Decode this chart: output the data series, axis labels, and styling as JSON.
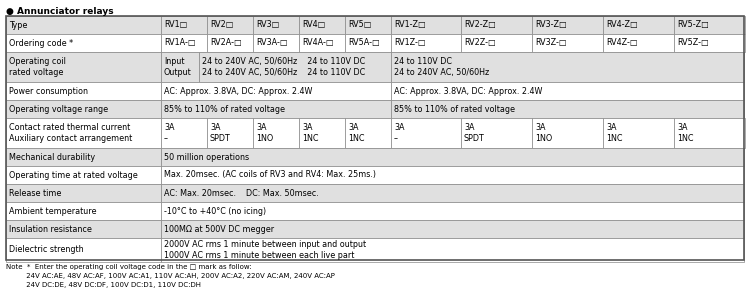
{
  "title": "● Annunciator relays",
  "note_lines": [
    "Note  *  Enter the operating coil voltage code in the □ mark as follow:",
    "         24V AC:AE, 48V AC:AF, 100V AC:A1, 110V AC:AH, 200V AC:A2, 220V AC:AM, 240V AC:AP",
    "         24V DC:DE, 48V DC:DF, 100V DC:D1, 110V DC:DH"
  ],
  "rows": [
    {
      "label": "Type",
      "cols": [
        "RV1□",
        "RV2□",
        "RV3□",
        "RV4□",
        "RV5□",
        "RV1-Z□",
        "RV2-Z□",
        "RV3-Z□",
        "RV4-Z□",
        "RV5-Z□"
      ],
      "bg": "#e0e0e0",
      "type": "individual"
    },
    {
      "label": "Ordering code *",
      "cols": [
        "RV1A-□",
        "RV2A-□",
        "RV3A-□",
        "RV4A-□",
        "RV5A-□",
        "RV1Z-□",
        "RV2Z-□",
        "RV3Z-□",
        "RV4Z-□",
        "RV5Z-□"
      ],
      "bg": "#ffffff",
      "type": "individual"
    },
    {
      "label": "Operating coil\nrated voltage",
      "sublabel": "Input\nOutput",
      "col1_text": "24 to 240V AC, 50/60Hz    24 to 110V DC\n24 to 240V AC, 50/60Hz    24 to 110V DC",
      "col2_text": "24 to 110V DC\n24 to 240V AC, 50/60Hz",
      "bg": "#e0e0e0",
      "type": "voltage"
    },
    {
      "label": "Power consumption",
      "col1_text": "AC: Approx. 3.8VA, DC: Approx. 2.4W",
      "col2_text": "AC: Approx. 3.8VA, DC: Approx. 2.4W",
      "bg": "#ffffff",
      "type": "half"
    },
    {
      "label": "Operating voltage range",
      "col1_text": "85% to 110% of rated voltage",
      "col2_text": "85% to 110% of rated voltage",
      "bg": "#e0e0e0",
      "type": "half"
    },
    {
      "label": "Contact rated thermal current\nAuxiliary contact arrangement",
      "cols": [
        "3A\n–",
        "3A\nSPDT",
        "3A\n1NO",
        "3A\n1NC",
        "3A\n1NC",
        "3A\n–",
        "3A\nSPDT",
        "3A\n1NO",
        "3A\n1NC",
        "3A\n1NC"
      ],
      "bg": "#ffffff",
      "type": "individual"
    },
    {
      "label": "Mechanical durability",
      "full_text": "50 million operations",
      "bg": "#e0e0e0",
      "type": "full"
    },
    {
      "label": "Operating time at rated voltage",
      "full_text": "Max. 20msec. (AC coils of RV3 and RV4: Max. 25ms.)",
      "bg": "#ffffff",
      "type": "full"
    },
    {
      "label": "Release time",
      "full_text": "AC: Max. 20msec.    DC: Max. 50msec.",
      "bg": "#e0e0e0",
      "type": "full"
    },
    {
      "label": "Ambient temperature",
      "full_text": "-10°C to +40°C (no icing)",
      "bg": "#ffffff",
      "type": "full"
    },
    {
      "label": "Insulation resistance",
      "full_text": "100MΩ at 500V DC megger",
      "bg": "#e0e0e0",
      "type": "full"
    },
    {
      "label": "Dielectric strength",
      "full_text": "2000V AC rms 1 minute between input and output\n1000V AC rms 1 minute between each live part",
      "bg": "#ffffff",
      "type": "full"
    }
  ]
}
